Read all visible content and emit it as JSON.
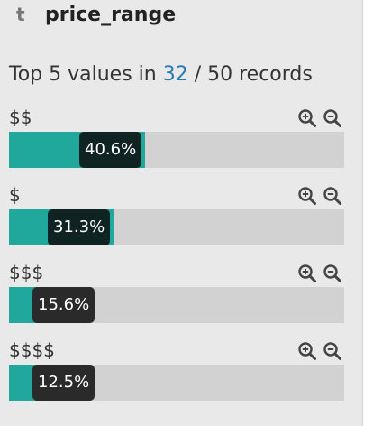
{
  "field": {
    "type_label": "t",
    "name": "price_range"
  },
  "summary": {
    "prefix": "Top 5 values in ",
    "count": "32",
    "separator": " / ",
    "total": "50",
    "suffix": " records"
  },
  "colors": {
    "fill": "#20a89c",
    "track": "#d2d2d2",
    "tag": "#0f2422",
    "highlight": "#2a7ab0"
  },
  "icons": {
    "zoom_in": "zoom-in-icon",
    "zoom_out": "zoom-out-icon"
  },
  "values": [
    {
      "label": "$$",
      "percent_text": "40.6%",
      "fraction": 0.406
    },
    {
      "label": "$",
      "percent_text": "31.3%",
      "fraction": 0.313
    },
    {
      "label": "$$$",
      "percent_text": "15.6%",
      "fraction": 0.156
    },
    {
      "label": "$$$$",
      "percent_text": "12.5%",
      "fraction": 0.125
    }
  ]
}
